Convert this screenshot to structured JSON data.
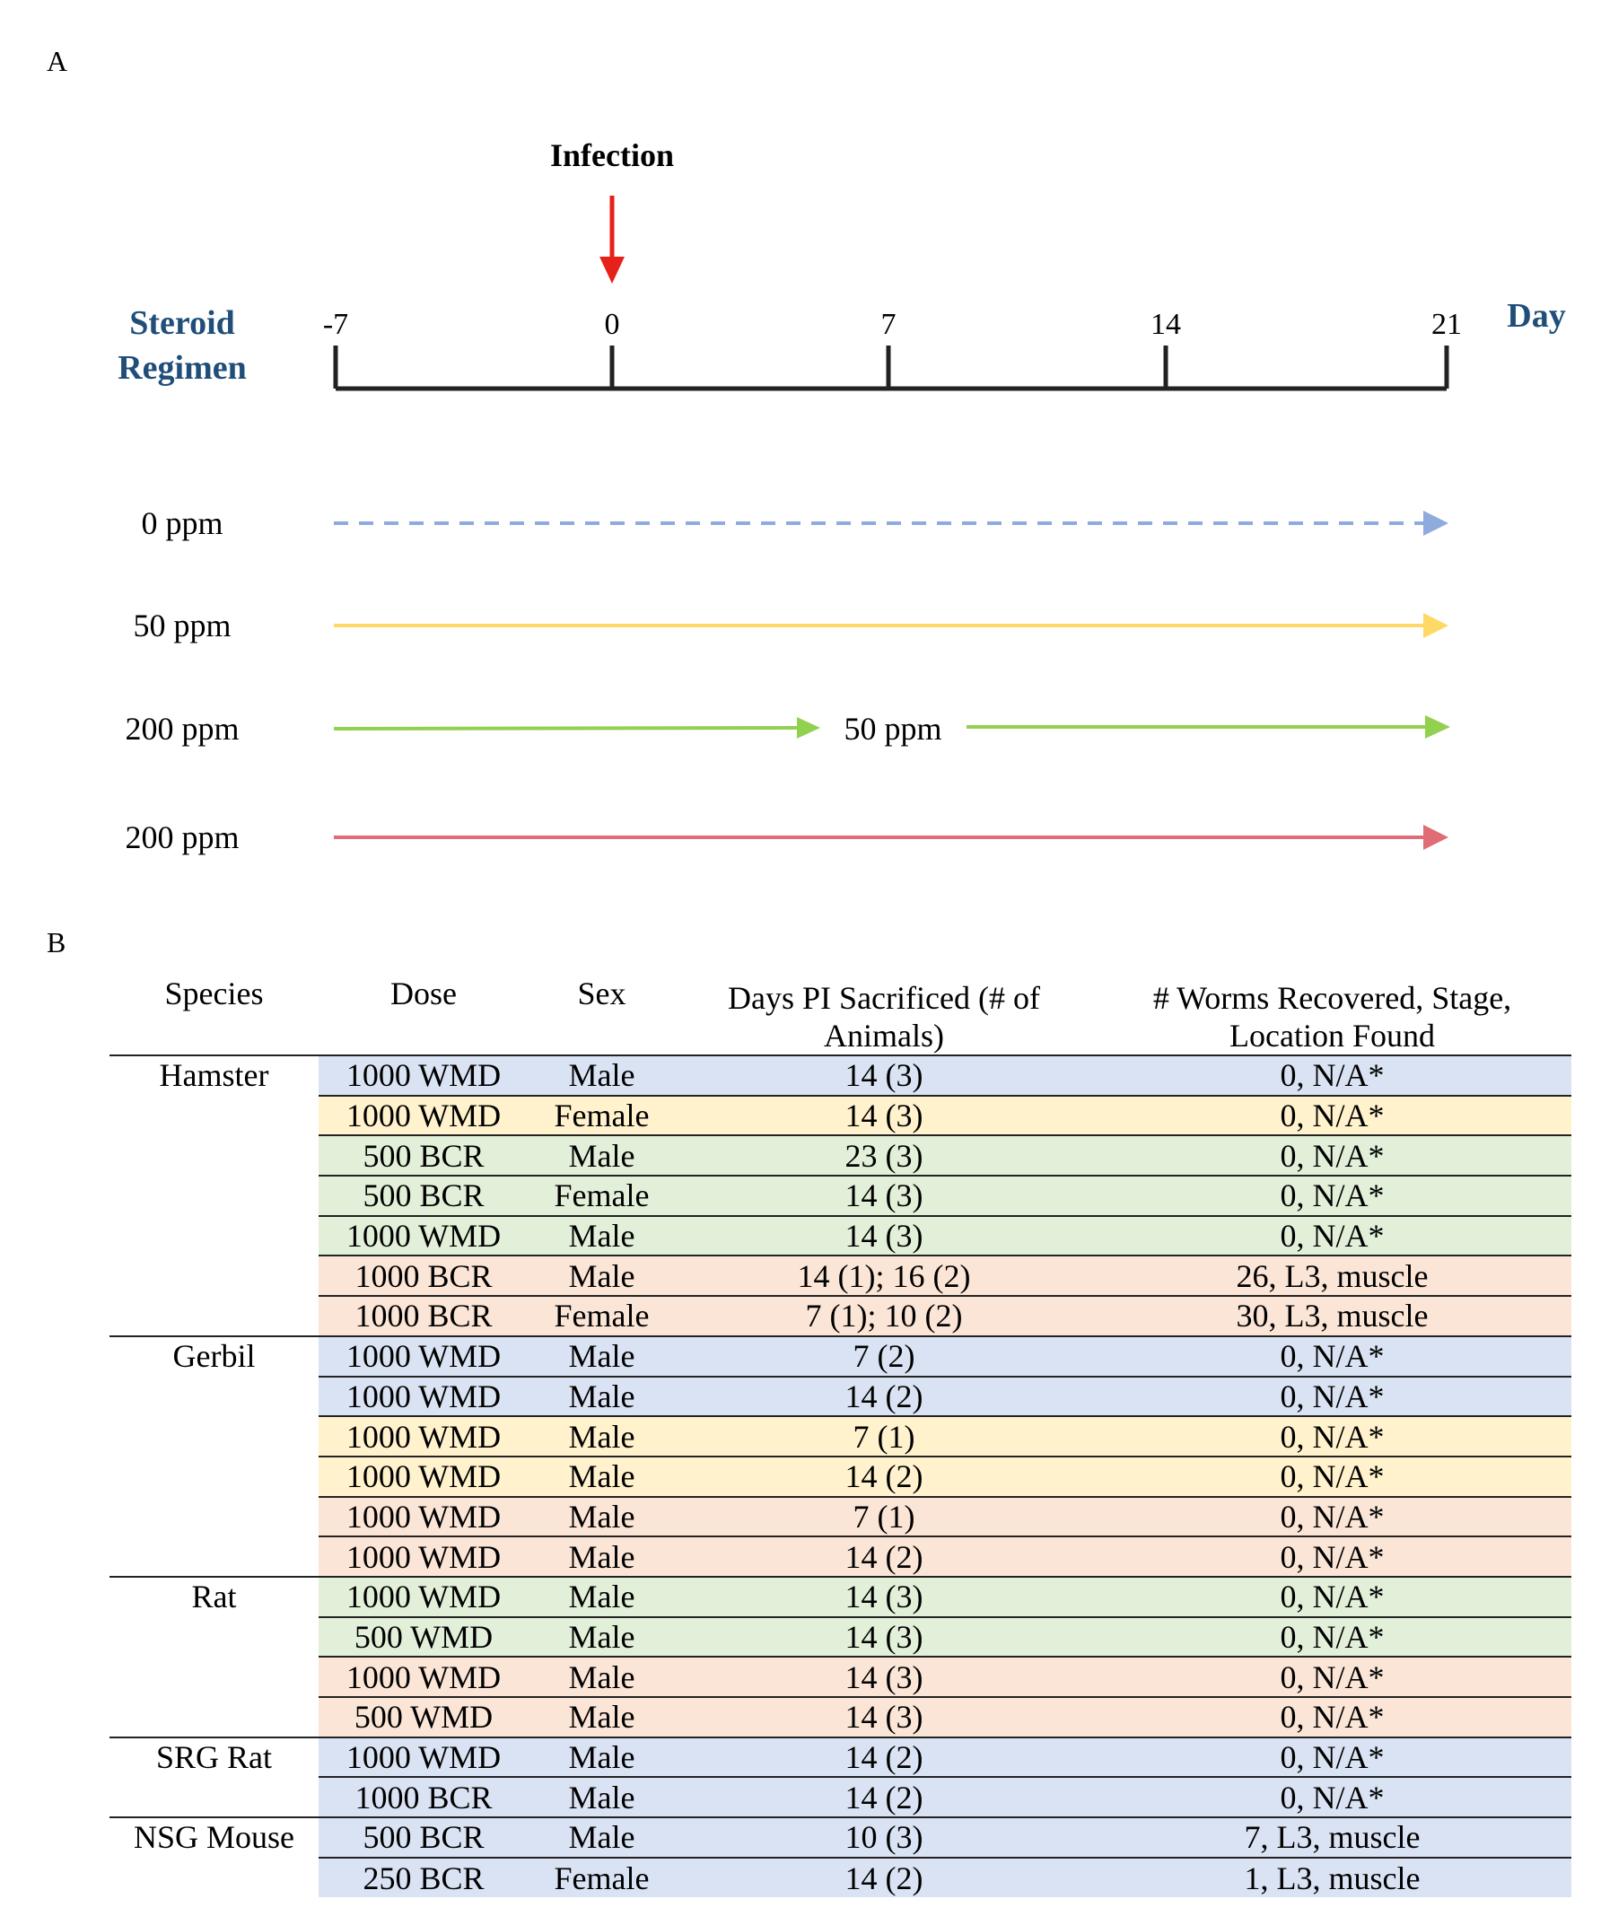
{
  "panel_a_label": "A",
  "panel_b_label": "B",
  "timeline": {
    "title_line1": "Steroid",
    "title_line2": "Regimen",
    "event_label": "Infection",
    "unit_label": "Day",
    "ticks": [
      "-7",
      "0",
      "7",
      "14",
      "21"
    ],
    "event_color": "#e8201a",
    "title_color": "#1f4e79"
  },
  "regimens": [
    {
      "label": "0 ppm",
      "style": "dashed",
      "color": "#8faadc"
    },
    {
      "label": "50 ppm",
      "style": "solid",
      "color": "#ffd966"
    },
    {
      "label": "200 ppm",
      "mid_label": "50 ppm",
      "style": "solid",
      "color": "#92d050"
    },
    {
      "label": "200 ppm",
      "style": "solid",
      "color": "#e06c75"
    }
  ],
  "table": {
    "headers": [
      "Species",
      "Dose",
      "Sex",
      "Days PI Sacrificed (# of Animals)",
      "# Worms Recovered, Stage, Location Found"
    ],
    "row_colors": {
      "blue": "#dae3f3",
      "yellow": "#fff2cc",
      "green": "#e2f0d9",
      "pink": "#fbe5d6"
    },
    "groups": [
      {
        "species": "Hamster",
        "rows": [
          {
            "dose": "1000 WMD",
            "sex": "Male",
            "days": "14 (3)",
            "worms": "0, N/A*",
            "color": "blue"
          },
          {
            "dose": "1000 WMD",
            "sex": "Female",
            "days": "14 (3)",
            "worms": "0, N/A*",
            "color": "yellow"
          },
          {
            "dose": "500 BCR",
            "sex": "Male",
            "days": "23 (3)",
            "worms": "0, N/A*",
            "color": "green"
          },
          {
            "dose": "500 BCR",
            "sex": "Female",
            "days": "14 (3)",
            "worms": "0, N/A*",
            "color": "green"
          },
          {
            "dose": "1000 WMD",
            "sex": "Male",
            "days": "14 (3)",
            "worms": "0, N/A*",
            "color": "green"
          },
          {
            "dose": "1000 BCR",
            "sex": "Male",
            "days": "14 (1); 16 (2)",
            "worms": "26, L3, muscle",
            "color": "pink"
          },
          {
            "dose": "1000 BCR",
            "sex": "Female",
            "days": "7 (1); 10 (2)",
            "worms": "30, L3, muscle",
            "color": "pink"
          }
        ]
      },
      {
        "species": "Gerbil",
        "rows": [
          {
            "dose": "1000 WMD",
            "sex": "Male",
            "days": "7 (2)",
            "worms": "0, N/A*",
            "color": "blue"
          },
          {
            "dose": "1000 WMD",
            "sex": "Male",
            "days": "14 (2)",
            "worms": "0, N/A*",
            "color": "blue"
          },
          {
            "dose": "1000 WMD",
            "sex": "Male",
            "days": "7 (1)",
            "worms": "0, N/A*",
            "color": "yellow"
          },
          {
            "dose": "1000 WMD",
            "sex": "Male",
            "days": "14 (2)",
            "worms": "0, N/A*",
            "color": "yellow"
          },
          {
            "dose": "1000 WMD",
            "sex": "Male",
            "days": "7 (1)",
            "worms": "0, N/A*",
            "color": "pink"
          },
          {
            "dose": "1000 WMD",
            "sex": "Male",
            "days": "14 (2)",
            "worms": "0, N/A*",
            "color": "pink"
          }
        ]
      },
      {
        "species": "Rat",
        "rows": [
          {
            "dose": "1000 WMD",
            "sex": "Male",
            "days": "14 (3)",
            "worms": "0, N/A*",
            "color": "green"
          },
          {
            "dose": "500 WMD",
            "sex": "Male",
            "days": "14 (3)",
            "worms": "0, N/A*",
            "color": "green"
          },
          {
            "dose": "1000 WMD",
            "sex": "Male",
            "days": "14 (3)",
            "worms": "0, N/A*",
            "color": "pink"
          },
          {
            "dose": "500 WMD",
            "sex": "Male",
            "days": "14 (3)",
            "worms": "0, N/A*",
            "color": "pink"
          }
        ]
      },
      {
        "species": "SRG Rat",
        "rows": [
          {
            "dose": "1000 WMD",
            "sex": "Male",
            "days": "14 (2)",
            "worms": "0, N/A*",
            "color": "blue"
          },
          {
            "dose": "1000 BCR",
            "sex": "Male",
            "days": "14 (2)",
            "worms": "0, N/A*",
            "color": "blue"
          }
        ]
      },
      {
        "species": "NSG Mouse",
        "rows": [
          {
            "dose": "500 BCR",
            "sex": "Male",
            "days": "10 (3)",
            "worms": "7, L3, muscle",
            "color": "blue"
          },
          {
            "dose": "250 BCR",
            "sex": "Female",
            "days": "14 (2)",
            "worms": "1, L3, muscle",
            "color": "blue"
          }
        ]
      }
    ]
  }
}
